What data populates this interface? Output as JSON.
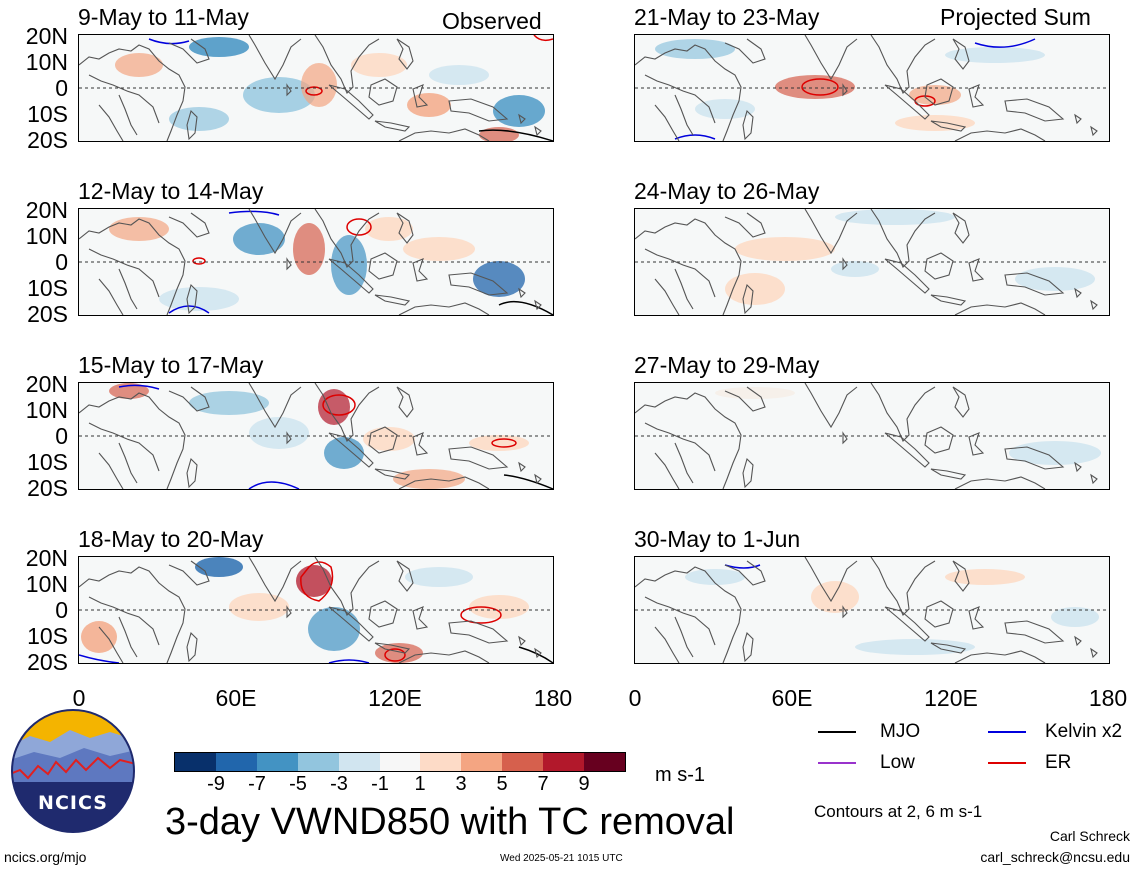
{
  "title": "3-day VWND850 with TC removal",
  "corner_labels": {
    "left": "Observed",
    "right": "Projected Sum"
  },
  "panels": {
    "left": [
      {
        "label": "9-May to 11-May"
      },
      {
        "label": "12-May to 14-May"
      },
      {
        "label": "15-May to 17-May"
      },
      {
        "label": "18-May to 20-May"
      }
    ],
    "right": [
      {
        "label": "21-May to 23-May"
      },
      {
        "label": "24-May to 26-May"
      },
      {
        "label": "27-May to 29-May"
      },
      {
        "label": "30-May to 1-Jun"
      }
    ]
  },
  "y_ticks": [
    "20N",
    "10N",
    "0",
    "10S",
    "20S"
  ],
  "x_ticks": [
    "0",
    "60E",
    "120E",
    "180"
  ],
  "colorbar": {
    "unit": "m s-1",
    "labels": [
      "-9",
      "-7",
      "-5",
      "-3",
      "-1",
      "1",
      "3",
      "5",
      "7",
      "9"
    ],
    "colors": [
      "#08306b",
      "#2166ac",
      "#4393c3",
      "#92c5de",
      "#d1e5f0",
      "#f7f7f7",
      "#fddbc7",
      "#f4a582",
      "#d6604d",
      "#b2182b",
      "#67001f"
    ]
  },
  "legend": {
    "items": [
      {
        "label": "MJO",
        "color": "#000000"
      },
      {
        "label": "Kelvin x2",
        "color": "#0000dd"
      },
      {
        "label": "Low",
        "color": "#9933cc"
      },
      {
        "label": "ER",
        "color": "#dd0000"
      }
    ],
    "contours_note": "Contours at 2, 6 m s-1"
  },
  "logo": {
    "text": "NCICS"
  },
  "footer": {
    "url": "ncics.org/mjo",
    "timestamp": "Wed 2025-05-21 1015 UTC",
    "author": "Carl Schreck",
    "email": "carl_schreck@ncsu.edu"
  }
}
